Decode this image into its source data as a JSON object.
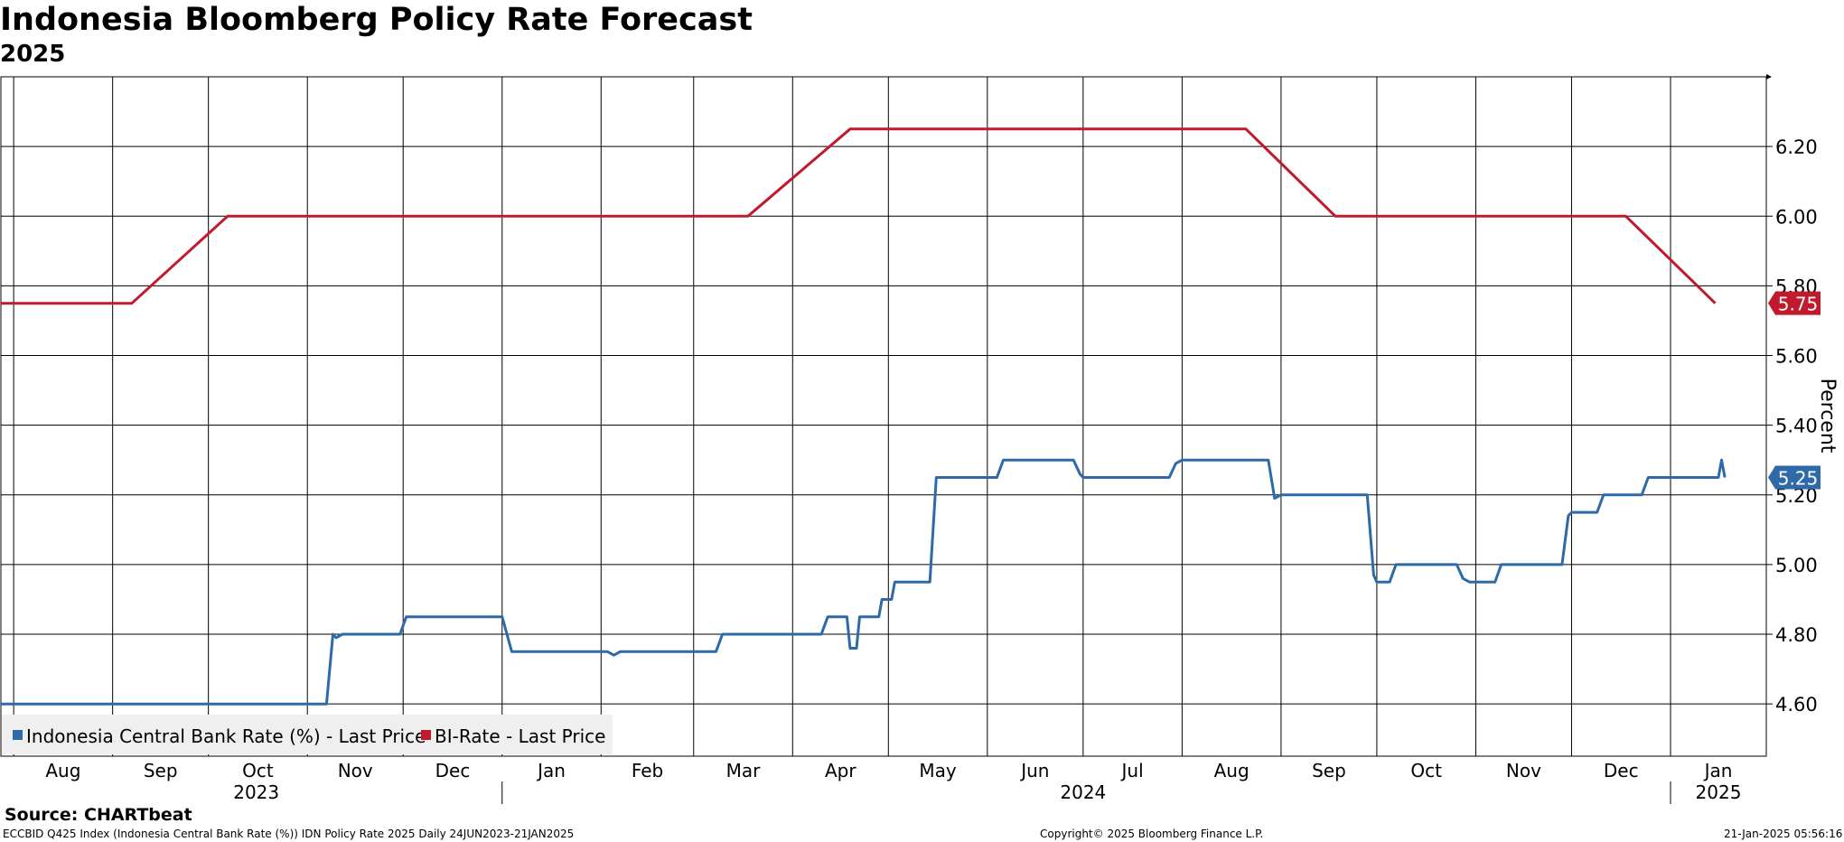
{
  "chart_data": {
    "type": "line",
    "title": "Indonesia Bloomberg Policy Rate Forecast",
    "subtitle": "2025",
    "ylabel": "Percent",
    "ylim": [
      4.45,
      6.4
    ],
    "y_ticks": [
      "4.60",
      "4.80",
      "5.00",
      "5.20",
      "5.40",
      "5.60",
      "5.80",
      "6.00",
      "6.20"
    ],
    "y_tick_values": [
      4.6,
      4.8,
      5.0,
      5.2,
      5.4,
      5.6,
      5.8,
      6.0,
      6.2
    ],
    "x_range": [
      "2023-07-28",
      "2025-01-31"
    ],
    "x_ticks": [
      {
        "label": "Aug",
        "date": "2023-08-01"
      },
      {
        "label": "Sep",
        "date": "2023-09-01"
      },
      {
        "label": "Oct",
        "date": "2023-10-01"
      },
      {
        "label": "Nov",
        "date": "2023-11-01"
      },
      {
        "label": "Dec",
        "date": "2023-12-01"
      },
      {
        "label": "Jan",
        "date": "2024-01-01"
      },
      {
        "label": "Feb",
        "date": "2024-02-01"
      },
      {
        "label": "Mar",
        "date": "2024-03-01"
      },
      {
        "label": "Apr",
        "date": "2024-04-01"
      },
      {
        "label": "May",
        "date": "2024-05-01"
      },
      {
        "label": "Jun",
        "date": "2024-06-01"
      },
      {
        "label": "Jul",
        "date": "2024-07-01"
      },
      {
        "label": "Aug",
        "date": "2024-08-01"
      },
      {
        "label": "Sep",
        "date": "2024-09-01"
      },
      {
        "label": "Oct",
        "date": "2024-10-01"
      },
      {
        "label": "Nov",
        "date": "2024-11-01"
      },
      {
        "label": "Dec",
        "date": "2024-12-01"
      },
      {
        "label": "Jan",
        "date": "2025-01-01"
      }
    ],
    "year_labels": [
      {
        "label": "2023",
        "date": "2023-10-16"
      },
      {
        "label": "2024",
        "date": "2024-07-01"
      },
      {
        "label": "2025",
        "date": "2025-01-16"
      }
    ],
    "year_separators": [
      "2024-01-01",
      "2025-01-01"
    ],
    "grid": true,
    "legend_position": "bottom-left",
    "series": [
      {
        "name": "Indonesia Central Bank Rate (%) - Last Price",
        "color": "#2e6aa8",
        "last_value_label": "5.25",
        "points": [
          [
            "2023-07-28",
            4.6
          ],
          [
            "2023-11-07",
            4.6
          ],
          [
            "2023-11-09",
            4.8
          ],
          [
            "2023-11-10",
            4.79
          ],
          [
            "2023-11-12",
            4.8
          ],
          [
            "2023-11-30",
            4.8
          ],
          [
            "2023-12-02",
            4.85
          ],
          [
            "2024-01-01",
            4.85
          ],
          [
            "2024-01-04",
            4.75
          ],
          [
            "2024-02-03",
            4.75
          ],
          [
            "2024-02-05",
            4.74
          ],
          [
            "2024-02-07",
            4.75
          ],
          [
            "2024-03-08",
            4.75
          ],
          [
            "2024-03-10",
            4.8
          ],
          [
            "2024-04-10",
            4.8
          ],
          [
            "2024-04-12",
            4.85
          ],
          [
            "2024-04-18",
            4.85
          ],
          [
            "2024-04-19",
            4.76
          ],
          [
            "2024-04-21",
            4.76
          ],
          [
            "2024-04-22",
            4.85
          ],
          [
            "2024-04-28",
            4.85
          ],
          [
            "2024-04-29",
            4.9
          ],
          [
            "2024-05-02",
            4.9
          ],
          [
            "2024-05-03",
            4.95
          ],
          [
            "2024-05-14",
            4.95
          ],
          [
            "2024-05-16",
            5.25
          ],
          [
            "2024-06-04",
            5.25
          ],
          [
            "2024-06-06",
            5.3
          ],
          [
            "2024-06-28",
            5.3
          ],
          [
            "2024-06-30",
            5.26
          ],
          [
            "2024-07-01",
            5.25
          ],
          [
            "2024-07-28",
            5.25
          ],
          [
            "2024-07-30",
            5.29
          ],
          [
            "2024-08-01",
            5.3
          ],
          [
            "2024-08-28",
            5.3
          ],
          [
            "2024-08-30",
            5.19
          ],
          [
            "2024-09-01",
            5.2
          ],
          [
            "2024-09-28",
            5.2
          ],
          [
            "2024-09-30",
            4.97
          ],
          [
            "2024-10-01",
            4.95
          ],
          [
            "2024-10-05",
            4.95
          ],
          [
            "2024-10-07",
            5.0
          ],
          [
            "2024-10-26",
            5.0
          ],
          [
            "2024-10-28",
            4.96
          ],
          [
            "2024-10-30",
            4.95
          ],
          [
            "2024-11-07",
            4.95
          ],
          [
            "2024-11-09",
            5.0
          ],
          [
            "2024-11-28",
            5.0
          ],
          [
            "2024-11-30",
            5.14
          ],
          [
            "2024-12-01",
            5.15
          ],
          [
            "2024-12-09",
            5.15
          ],
          [
            "2024-12-11",
            5.2
          ],
          [
            "2024-12-23",
            5.2
          ],
          [
            "2024-12-25",
            5.25
          ],
          [
            "2025-01-16",
            5.25
          ],
          [
            "2025-01-17",
            5.3
          ],
          [
            "2025-01-18",
            5.25
          ]
        ]
      },
      {
        "name": "BI-Rate - Last Price",
        "color": "#c01a2c",
        "last_value_label": "5.75",
        "points": [
          [
            "2023-07-28",
            5.75
          ],
          [
            "2023-09-07",
            5.75
          ],
          [
            "2023-10-07",
            6.0
          ],
          [
            "2024-03-18",
            6.0
          ],
          [
            "2024-04-19",
            6.25
          ],
          [
            "2024-08-21",
            6.25
          ],
          [
            "2024-09-18",
            6.0
          ],
          [
            "2024-12-18",
            6.0
          ],
          [
            "2025-01-15",
            5.75
          ]
        ]
      }
    ]
  },
  "footer": {
    "source": "Source: CHARTbeat",
    "ticker": "ECCBID Q425 Index (Indonesia Central Bank Rate (%)) IDN Policy Rate 2025  Daily 24JUN2023-21JAN2025",
    "copyright": "Copyright© 2025 Bloomberg Finance L.P.",
    "timestamp": "21-Jan-2025 05:56:16"
  }
}
